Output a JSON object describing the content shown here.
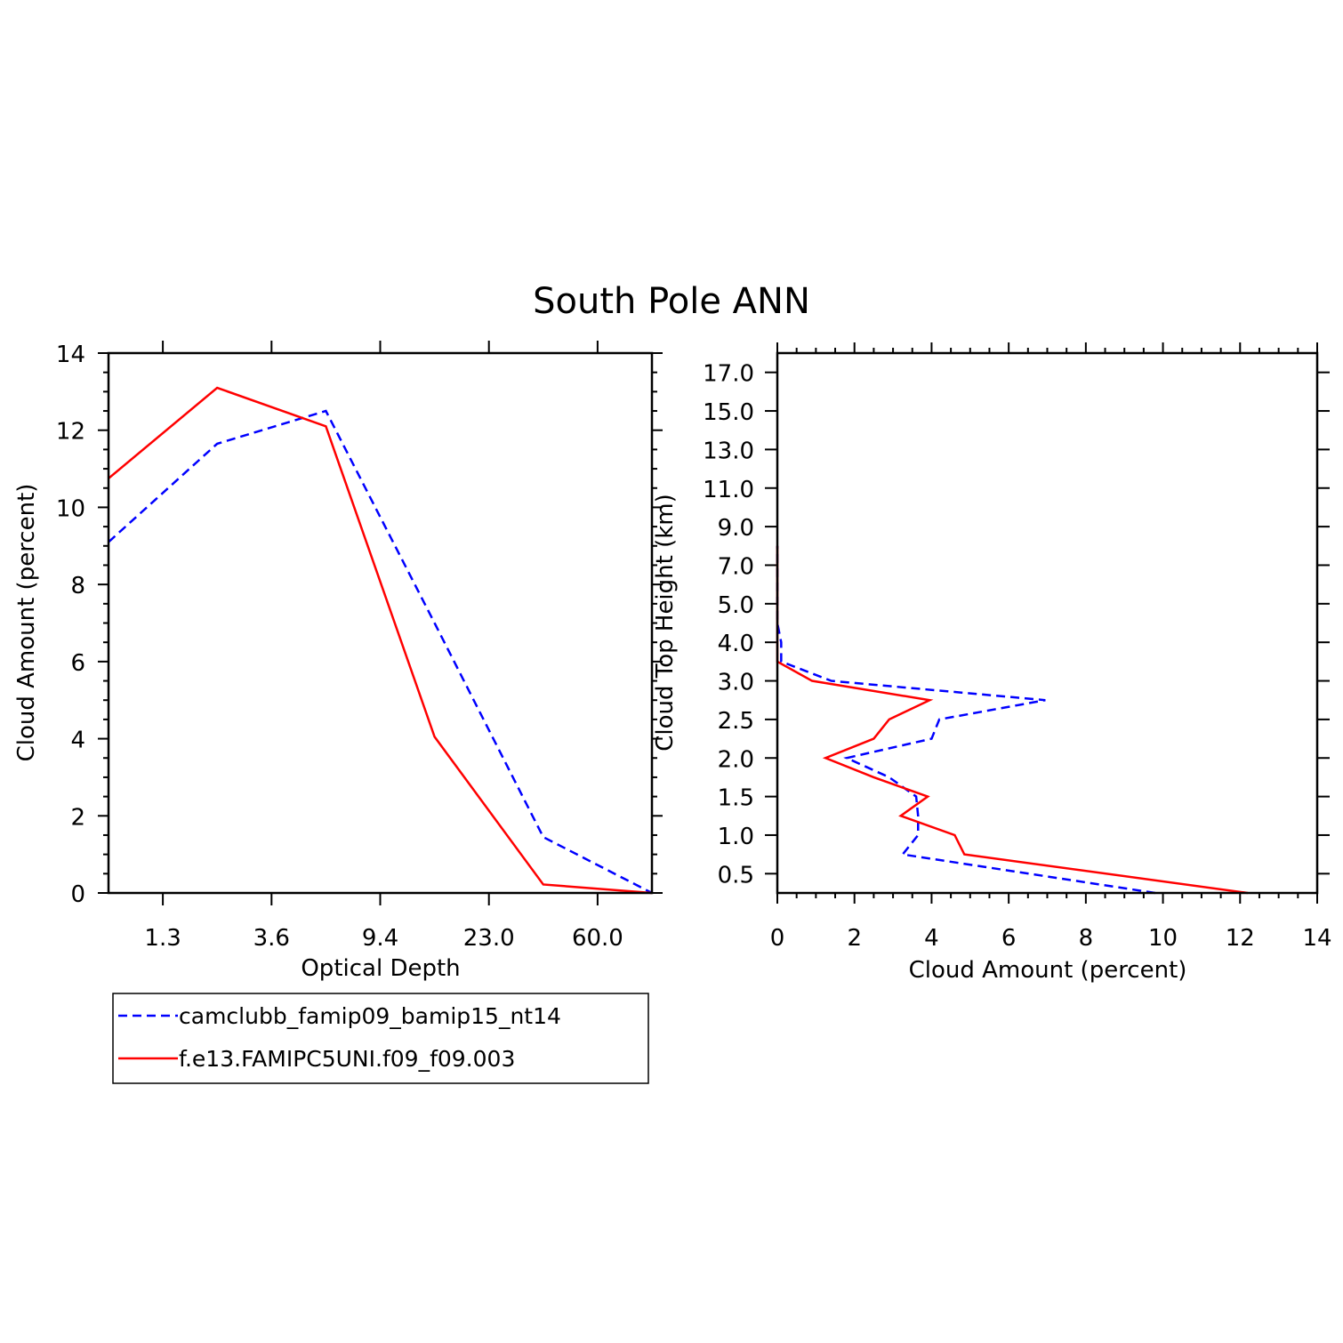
{
  "title": "South Pole ANN",
  "colors": {
    "series_a": "#0000ff",
    "series_b": "#ff0000",
    "axis": "#000000"
  },
  "legend": [
    {
      "name": "camclubb_famip09_bamip15_nt14",
      "style": "dashed",
      "color": "#0000ff"
    },
    {
      "name": "f.e13.FAMIPC5UNI.f09_f09.003",
      "style": "solid",
      "color": "#ff0000"
    }
  ],
  "chart_data": [
    {
      "type": "line",
      "id": "optical_depth",
      "title": "",
      "xlabel": "Optical Depth",
      "ylabel": "Cloud Amount (percent)",
      "x_positions": [
        0,
        1,
        2,
        3,
        4,
        5,
        6
      ],
      "x_ticks": [
        {
          "label": "1.3",
          "pos": 0.5
        },
        {
          "label": "3.6",
          "pos": 1.5
        },
        {
          "label": "9.4",
          "pos": 2.5
        },
        {
          "label": "23.0",
          "pos": 3.5
        },
        {
          "label": "60.0",
          "pos": 4.5
        }
      ],
      "xlim": [
        0,
        5
      ],
      "y_ticks": [
        "0",
        "2",
        "4",
        "6",
        "8",
        "10",
        "12",
        "14"
      ],
      "ylim": [
        0,
        14
      ],
      "series": [
        {
          "name": "camclubb_famip09_bamip15_nt14",
          "x": [
            0,
            1,
            2,
            3,
            4,
            5
          ],
          "values": [
            9.1,
            11.65,
            12.5,
            7.0,
            1.45,
            0.0
          ]
        },
        {
          "name": "f.e13.FAMIPC5UNI.f09_f09.003",
          "x": [
            0,
            1,
            2,
            3,
            4,
            5
          ],
          "values": [
            10.75,
            13.1,
            12.1,
            4.05,
            0.22,
            0.0
          ]
        }
      ]
    },
    {
      "type": "line",
      "id": "cloud_top_height",
      "title": "",
      "xlabel": "Cloud Amount (percent)",
      "ylabel": "Cloud Top Height (km)",
      "x_ticks": [
        "0",
        "2",
        "4",
        "6",
        "8",
        "10",
        "12",
        "14"
      ],
      "xlim": [
        0,
        14
      ],
      "y_ticks": [
        "0.5",
        "1.0",
        "1.5",
        "2.0",
        "2.5",
        "3.0",
        "4.0",
        "5.0",
        "7.0",
        "9.0",
        "11.0",
        "13.0",
        "15.0",
        "17.0"
      ],
      "ylim_index": [
        0,
        14
      ],
      "series": [
        {
          "name": "camclubb_famip09_bamip15_nt14",
          "y_index": [
            0,
            1.0,
            1.5,
            2.0,
            2.5,
            3.0,
            3.5,
            4.0,
            4.5,
            5.0,
            5.5,
            6.0,
            6.5,
            7.0,
            7.5,
            8.0,
            9.0
          ],
          "values": [
            9.8,
            3.25,
            3.65,
            3.65,
            3.6,
            2.9,
            1.8,
            4.0,
            4.2,
            6.95,
            1.4,
            0.1,
            0.1,
            0.0,
            0.0,
            0.0,
            0.0
          ]
        },
        {
          "name": "f.e13.FAMIPC5UNI.f09_f09.003",
          "y_index": [
            0,
            1.0,
            1.5,
            2.0,
            2.5,
            3.0,
            3.5,
            4.0,
            4.5,
            5.0,
            5.5,
            6.0,
            6.5,
            7.0,
            7.5,
            8.0,
            9.0
          ],
          "values": [
            12.2,
            4.85,
            4.6,
            3.2,
            3.9,
            2.5,
            1.25,
            2.5,
            2.9,
            3.95,
            0.9,
            0.0,
            0.0,
            0.0,
            0.0,
            0.0,
            0.0
          ]
        }
      ]
    }
  ]
}
